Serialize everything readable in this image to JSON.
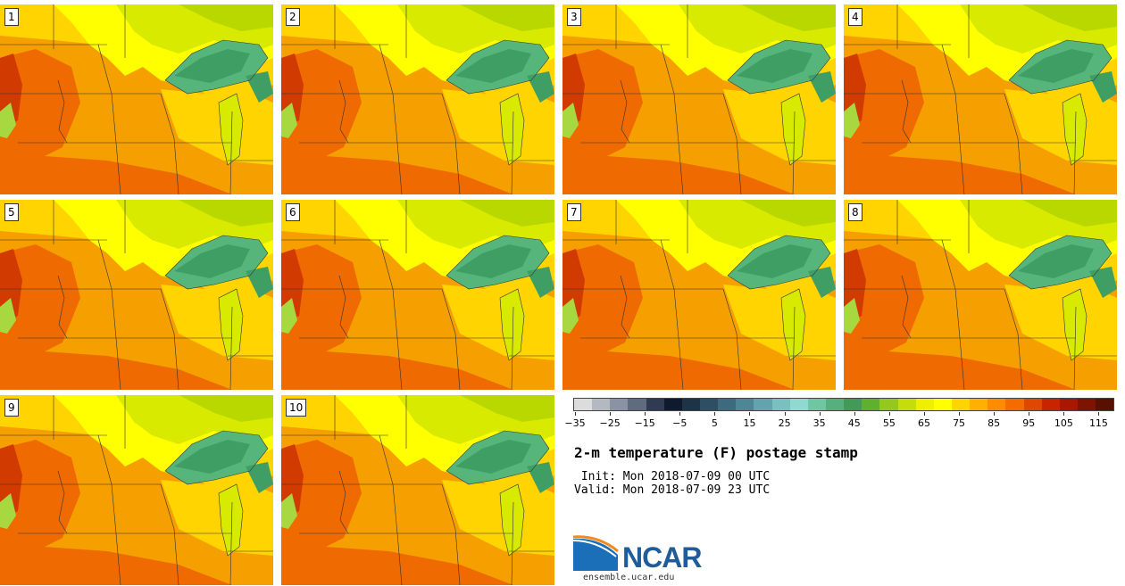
{
  "panels": [
    {
      "label": "1"
    },
    {
      "label": "2"
    },
    {
      "label": "3"
    },
    {
      "label": "4"
    },
    {
      "label": "5"
    },
    {
      "label": "6"
    },
    {
      "label": "7"
    },
    {
      "label": "8"
    },
    {
      "label": "9"
    },
    {
      "label": "10"
    }
  ],
  "colorbar": {
    "ticks": [
      "−35",
      "−25",
      "−15",
      "−5",
      "5",
      "15",
      "25",
      "35",
      "45",
      "55",
      "65",
      "75",
      "85",
      "95",
      "105",
      "115"
    ],
    "colors": [
      "#dcdcdc",
      "#b4b8c0",
      "#8a93a3",
      "#5f6b7f",
      "#2f3b52",
      "#0f1a2e",
      "#1d3346",
      "#2e4f63",
      "#3e6a7f",
      "#4f8696",
      "#62a3ad",
      "#79c0c0",
      "#8fd9d1",
      "#6ec7a2",
      "#55b07d",
      "#419a56",
      "#5fb02c",
      "#94c81c",
      "#c6dd0c",
      "#eef000",
      "#ffff00",
      "#ffd400",
      "#ffb000",
      "#ff8c00",
      "#f46b00",
      "#e04700",
      "#c92400",
      "#a81800",
      "#7e1400",
      "#5a1000"
    ]
  },
  "title": "2-m temperature (F) postage stamp",
  "init": " Init: Mon 2018-07-09 00 UTC",
  "valid": "Valid: Mon 2018-07-09 23 UTC",
  "logo": {
    "name": "NCAR",
    "url": "ensemble.ucar.edu"
  }
}
